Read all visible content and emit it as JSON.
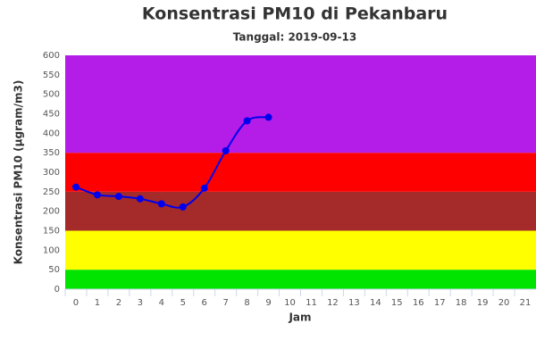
{
  "chart_data": {
    "type": "line",
    "title": "Konsentrasi PM10 di Pekanbaru",
    "subtitle": "Tanggal: 2019-09-13",
    "x_label": "Jam",
    "y_label": "Konsentrasi PM10 (µgram/m3)",
    "categories": [
      "0",
      "1",
      "2",
      "3",
      "4",
      "5",
      "6",
      "7",
      "8",
      "9",
      "10",
      "11",
      "12",
      "13",
      "14",
      "15",
      "16",
      "17",
      "18",
      "19",
      "20",
      "21"
    ],
    "series": [
      {
        "color": "#0000ee",
        "values": [
          262,
          242,
          238,
          232,
          219,
          211,
          259,
          355,
          432,
          441,
          null,
          null,
          null,
          null,
          null,
          null,
          null,
          null,
          null,
          null,
          null,
          null
        ]
      }
    ],
    "bands": [
      {
        "from": 0,
        "to": 50,
        "color": "#00e400"
      },
      {
        "from": 50,
        "to": 150,
        "color": "#ffff00"
      },
      {
        "from": 150,
        "to": 250,
        "color": "#a52a2a"
      },
      {
        "from": 250,
        "to": 350,
        "color": "#ff0000"
      },
      {
        "from": 350,
        "to": 600,
        "color": "#b41ce8"
      }
    ],
    "ylim": [
      0,
      600
    ],
    "yticks": [
      0,
      50,
      100,
      150,
      200,
      250,
      300,
      350,
      400,
      450,
      500,
      550,
      600
    ],
    "grid": false
  }
}
